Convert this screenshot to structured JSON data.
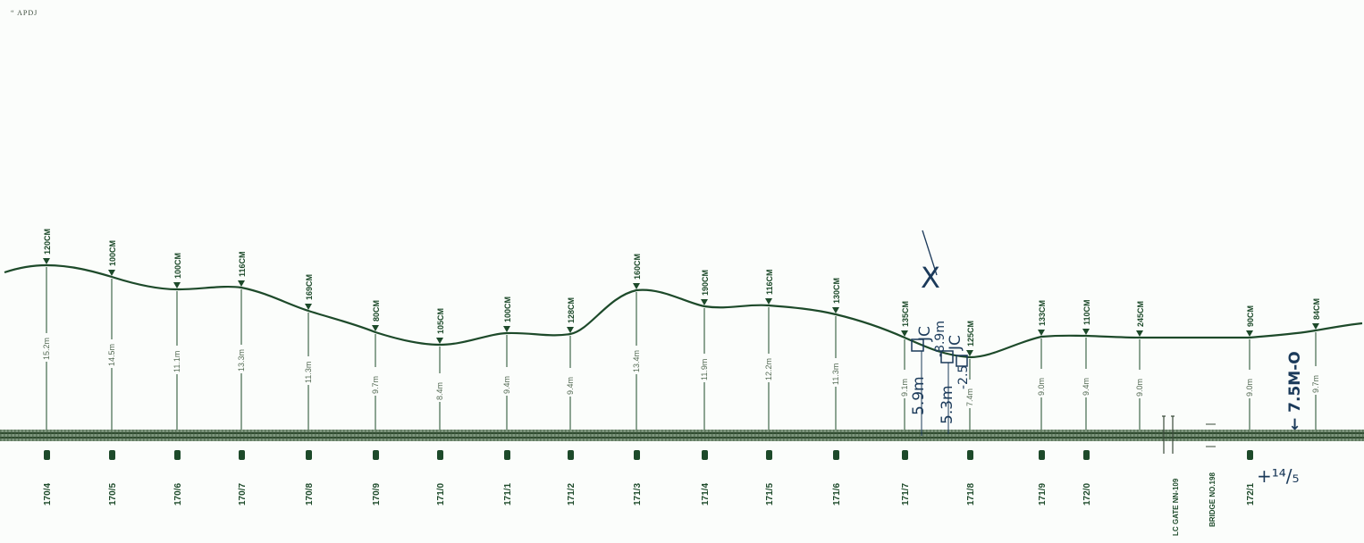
{
  "header": {
    "corner_mark": "“ APDJ"
  },
  "stations": [
    {
      "pole": "170/4",
      "sag": "120CM",
      "height": "15.2m"
    },
    {
      "pole": "170/5",
      "sag": "100CM",
      "height": "14.5m"
    },
    {
      "pole": "170/6",
      "sag": "100CM",
      "height": "11.1m"
    },
    {
      "pole": "170/7",
      "sag": "116CM",
      "height": "13.3m"
    },
    {
      "pole": "170/8",
      "sag": "169CM",
      "height": "11.3m"
    },
    {
      "pole": "170/9",
      "sag": "80CM",
      "height": "9.7m"
    },
    {
      "pole": "171/0",
      "sag": "105CM",
      "height": "8.4m"
    },
    {
      "pole": "171/1",
      "sag": "100CM",
      "height": "9.4m"
    },
    {
      "pole": "171/2",
      "sag": "128CM",
      "height": "9.4m"
    },
    {
      "pole": "171/3",
      "sag": "160CM",
      "height": "13.4m"
    },
    {
      "pole": "171/4",
      "sag": "190CM",
      "height": "11.9m"
    },
    {
      "pole": "171/5",
      "sag": "116CM",
      "height": "12.2m"
    },
    {
      "pole": "171/6",
      "sag": "130CM",
      "height": "11.3m"
    },
    {
      "pole": "171/7",
      "sag": "135CM",
      "height": "9.1m"
    },
    {
      "pole": "171/8",
      "sag": "125CM",
      "height": "7.4m"
    },
    {
      "pole": "171/9",
      "sag": "133CM",
      "height": "9.0m"
    },
    {
      "pole": "172/0",
      "sag": "110CM",
      "height": "9.4m"
    },
    {
      "pole": "",
      "sag": "245CM",
      "height": "9.0m"
    },
    {
      "pole": "172/1",
      "sag": "90CM",
      "height": "9.0m"
    },
    {
      "pole": "",
      "sag": "84CM",
      "height": "9.7m"
    }
  ],
  "structures": {
    "lc_gate": "LC GATE NN-109",
    "bridge": "BRIDGE NO.198"
  },
  "handwritten": {
    "jc1": "JC",
    "jc1_dim": "-8.9m",
    "jc1_height": "5.9m",
    "jc2": "JC",
    "jc2_dim": "-2.5",
    "jc2_height": "5.3m",
    "vertical_note": "← 7.5M-O",
    "bottom_note": "+¹⁴/₅",
    "x_mark": "X"
  },
  "colors": {
    "ink": "#1d4a2a",
    "track": "#4f6b4f",
    "pen": "#1b3a5a"
  }
}
